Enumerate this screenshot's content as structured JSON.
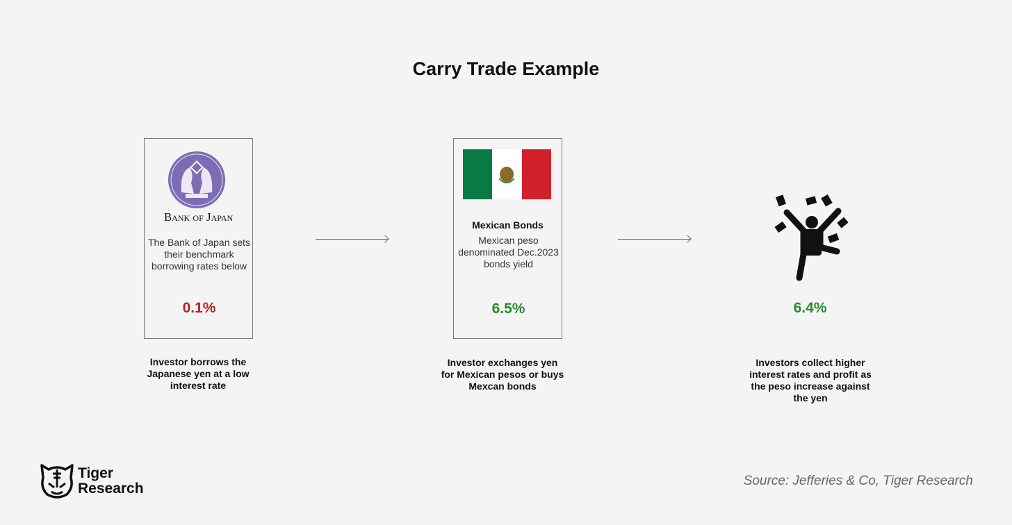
{
  "title": "Carry Trade Example",
  "steps": [
    {
      "logo_text": "Bank of Japan",
      "description": "The Bank of Japan sets their benchmark borrowing rates below",
      "rate": "0.1%",
      "caption": "Investor borrows the Japanese yen at a low interest rate"
    },
    {
      "heading": "Mexican Bonds",
      "description": "Mexican peso denominated Dec.2023 bonds yield",
      "rate": "6.5%",
      "caption": "Investor exchanges yen for Mexican pesos or buys Mexcan bonds"
    },
    {
      "rate": "6.4%",
      "caption": "Investors collect higher interest rates and profit as the peso increase against the yen"
    }
  ],
  "colors": {
    "negative": "#b5202a",
    "positive": "#2a8a2e",
    "seal": "#7c6cb4",
    "flag_green": "#0a7a45",
    "flag_red": "#d0202c"
  },
  "icons": [
    "bank-of-japan-seal",
    "mexico-flag",
    "money-celebration-icon",
    "tiger-logo"
  ],
  "footer": {
    "brand_line1": "Tiger",
    "brand_line2": "Research",
    "source": "Source: Jefferies & Co, Tiger Research"
  }
}
